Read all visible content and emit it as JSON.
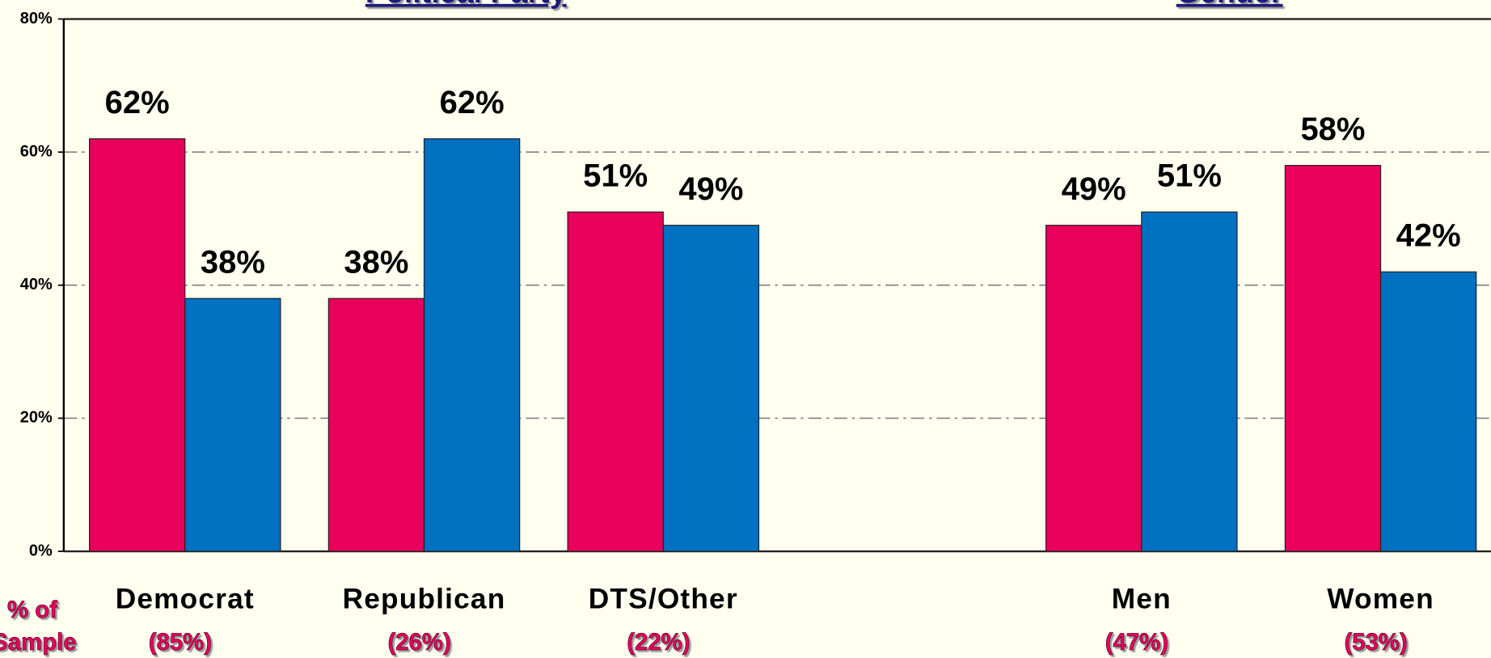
{
  "chart_data": {
    "type": "bar",
    "titles": [
      "Political Party",
      "Gender"
    ],
    "categories": [
      "Democrat",
      "Republican",
      "DTS/Other",
      null,
      "Men",
      "Women"
    ],
    "sample_sizes": [
      "(85%)",
      "(26%)",
      "(22%)",
      null,
      "(47%)",
      "(53%)"
    ],
    "sample_label": [
      "% of",
      "Sample"
    ],
    "series": [
      {
        "color": "#e8005a",
        "values": [
          62,
          38,
          51,
          null,
          49,
          58
        ],
        "value_labels": [
          "62%",
          "38%",
          "51%",
          null,
          "49%",
          "58%"
        ]
      },
      {
        "color": "#0070c0",
        "values": [
          38,
          62,
          49,
          null,
          51,
          42
        ],
        "value_labels": [
          "38%",
          "62%",
          "49%",
          null,
          "51%",
          "42%"
        ]
      }
    ],
    "ylim": [
      0,
      80
    ],
    "yticks": [
      {
        "value": 0,
        "label": "0%"
      },
      {
        "value": 20,
        "label": "20%"
      },
      {
        "value": 40,
        "label": "40%"
      },
      {
        "value": 60,
        "label": "60%"
      },
      {
        "value": 80,
        "label": "80%"
      }
    ],
    "grid": true
  }
}
